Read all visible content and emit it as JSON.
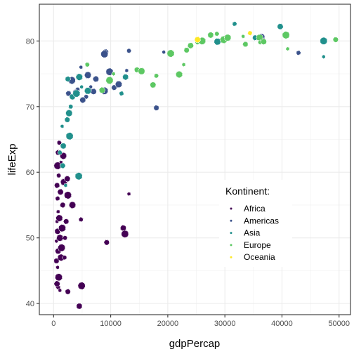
{
  "chart_data": {
    "type": "scatter",
    "title": "",
    "xlabel": "gdpPercap",
    "ylabel": "lifeExp",
    "xlim": [
      -2500,
      52000
    ],
    "ylim": [
      38.3,
      85.6
    ],
    "xticks": [
      0,
      10000,
      20000,
      30000,
      40000,
      50000
    ],
    "xtick_labels": [
      "0",
      "10000",
      "20000",
      "30000",
      "40000",
      "50000"
    ],
    "yticks": [
      40,
      50,
      60,
      70,
      80
    ],
    "ytick_labels": [
      "40",
      "50",
      "60",
      "70",
      "80"
    ],
    "grid": true,
    "legend": {
      "title": "Kontinent:",
      "placement": "inside-lower-right",
      "entries": [
        "Africa",
        "Americas",
        "Asia",
        "Europe",
        "Oceania"
      ]
    },
    "colors": {
      "Africa": "#440154",
      "Americas": "#3b528b",
      "Asia": "#21908c",
      "Europe": "#5dc863",
      "Oceania": "#fde725"
    },
    "series": [
      {
        "name": "Africa",
        "points": [
          [
            800,
            42.5
          ],
          [
            600,
            43.0
          ],
          [
            900,
            44.0
          ],
          [
            700,
            45.5
          ],
          [
            500,
            46.5
          ],
          [
            1300,
            47.0
          ],
          [
            1900,
            47.0
          ],
          [
            800,
            48.0
          ],
          [
            1400,
            48.5
          ],
          [
            500,
            49.5
          ],
          [
            9300,
            49.3
          ],
          [
            1100,
            50.0
          ],
          [
            2000,
            50.0
          ],
          [
            700,
            51.0
          ],
          [
            1500,
            51.5
          ],
          [
            600,
            52.5
          ],
          [
            2200,
            52.5
          ],
          [
            1000,
            53.0
          ],
          [
            4800,
            52.8
          ],
          [
            12200,
            51.5
          ],
          [
            12500,
            50.6
          ],
          [
            800,
            54.0
          ],
          [
            1600,
            55.0
          ],
          [
            3300,
            55.0
          ],
          [
            700,
            56.0
          ],
          [
            1200,
            57.0
          ],
          [
            2500,
            56.5
          ],
          [
            13200,
            56.7
          ],
          [
            600,
            58.0
          ],
          [
            1800,
            58.5
          ],
          [
            900,
            59.5
          ],
          [
            2400,
            59.0
          ],
          [
            700,
            61.0
          ],
          [
            1300,
            61.5
          ],
          [
            800,
            63.0
          ],
          [
            1700,
            62.5
          ],
          [
            1000,
            64.5
          ],
          [
            4500,
            39.6
          ],
          [
            4900,
            42.7
          ],
          [
            1100,
            42.0
          ],
          [
            2500,
            41.8
          ]
        ]
      },
      {
        "name": "Americas",
        "points": [
          [
            5700,
            71.5
          ],
          [
            7000,
            72.3
          ],
          [
            8900,
            72.4
          ],
          [
            6500,
            73.0
          ],
          [
            10600,
            72.9
          ],
          [
            11400,
            73.4
          ],
          [
            4200,
            72.6
          ],
          [
            7400,
            74.2
          ],
          [
            9800,
            75.3
          ],
          [
            12800,
            75.5
          ],
          [
            3800,
            72.2
          ],
          [
            6000,
            74.8
          ],
          [
            13200,
            78.5
          ],
          [
            9100,
            78.3
          ],
          [
            8900,
            78.0
          ],
          [
            19300,
            78.3
          ],
          [
            18000,
            69.8
          ],
          [
            36400,
            80.6
          ],
          [
            42900,
            78.2
          ],
          [
            5100,
            71.0
          ],
          [
            3200,
            74.0
          ],
          [
            4800,
            76.0
          ],
          [
            2600,
            72.0
          ]
        ]
      },
      {
        "name": "Asia",
        "points": [
          [
            1100,
            63.0
          ],
          [
            1700,
            64.0
          ],
          [
            2800,
            65.5
          ],
          [
            1500,
            67.0
          ],
          [
            2400,
            68.0
          ],
          [
            2700,
            69.0
          ],
          [
            3000,
            70.0
          ],
          [
            3300,
            71.5
          ],
          [
            4000,
            72.0
          ],
          [
            4900,
            73.0
          ],
          [
            2500,
            74.2
          ],
          [
            4500,
            74.5
          ],
          [
            11900,
            72.0
          ],
          [
            12600,
            74.5
          ],
          [
            4400,
            59.4
          ],
          [
            2100,
            58.0
          ],
          [
            1600,
            61.0
          ],
          [
            28700,
            79.9
          ],
          [
            31700,
            82.6
          ],
          [
            39700,
            82.2
          ],
          [
            47300,
            80.0
          ],
          [
            47300,
            77.6
          ],
          [
            35300,
            80.5
          ],
          [
            6000,
            72.4
          ]
        ]
      },
      {
        "name": "Europe",
        "points": [
          [
            5900,
            76.4
          ],
          [
            8500,
            72.5
          ],
          [
            9800,
            74.0
          ],
          [
            10500,
            75.0
          ],
          [
            14600,
            75.6
          ],
          [
            15400,
            75.4
          ],
          [
            18000,
            74.7
          ],
          [
            17400,
            73.3
          ],
          [
            20500,
            78.1
          ],
          [
            22800,
            76.4
          ],
          [
            23300,
            78.6
          ],
          [
            22000,
            74.9
          ],
          [
            25200,
            79.8
          ],
          [
            27500,
            80.9
          ],
          [
            29800,
            80.2
          ],
          [
            33200,
            80.7
          ],
          [
            33600,
            79.5
          ],
          [
            36100,
            80.5
          ],
          [
            36200,
            79.8
          ],
          [
            36800,
            79.9
          ],
          [
            40700,
            80.9
          ],
          [
            41000,
            78.8
          ],
          [
            49400,
            80.2
          ],
          [
            30500,
            80.5
          ],
          [
            28600,
            81.1
          ],
          [
            24000,
            79.3
          ],
          [
            26000,
            80.0
          ]
        ]
      },
      {
        "name": "Oceania",
        "points": [
          [
            34400,
            81.2
          ],
          [
            25200,
            80.2
          ]
        ]
      }
    ]
  }
}
